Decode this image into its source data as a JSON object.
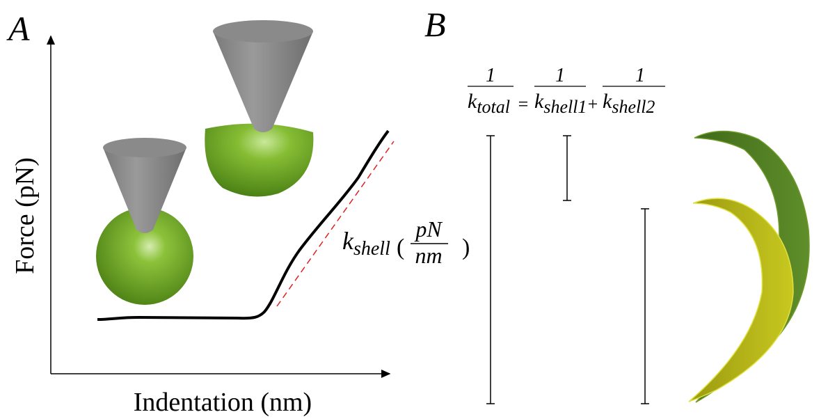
{
  "panel_a": {
    "label": "A",
    "y_axis": "Force (pN)",
    "x_axis": "Indentation (nm)",
    "slope_label": {
      "symbol": "k",
      "subscript": "shell",
      "open": "(",
      "unit_num": "pN",
      "unit_den": "nm",
      "close": ")"
    }
  },
  "panel_b": {
    "label": "B",
    "equation": {
      "lhs": {
        "num": "1",
        "den": "k",
        "den_sub": "total"
      },
      "equals": "=",
      "term1": {
        "num": "1",
        "den": "k",
        "den_sub": "shell1"
      },
      "plus": "+",
      "term2": {
        "num": "1",
        "den": "k",
        "den_sub": "shell2"
      }
    }
  }
}
